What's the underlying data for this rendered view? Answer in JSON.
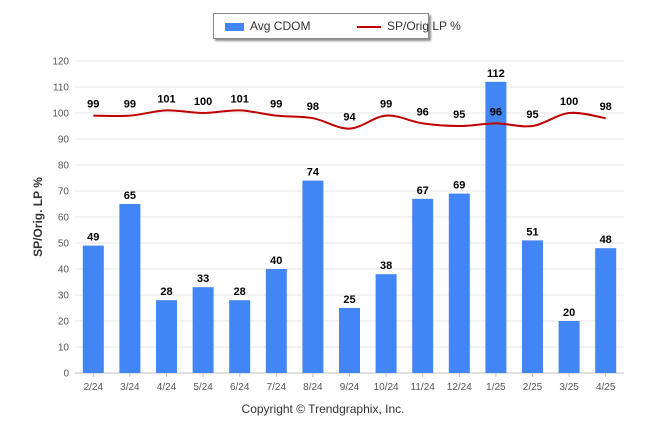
{
  "chart_data": {
    "type": "bar",
    "categories": [
      "2/24",
      "3/24",
      "4/24",
      "5/24",
      "6/24",
      "7/24",
      "8/24",
      "9/24",
      "10/24",
      "11/24",
      "12/24",
      "1/25",
      "2/25",
      "3/25",
      "4/25"
    ],
    "series": [
      {
        "name": "Avg CDOM",
        "type": "bar",
        "color": "#4285f4",
        "values": [
          49,
          65,
          28,
          33,
          28,
          40,
          74,
          25,
          38,
          67,
          69,
          112,
          51,
          20,
          48
        ]
      },
      {
        "name": "SP/Orig LP %",
        "type": "line",
        "color": "#c00000",
        "values": [
          99,
          99,
          101,
          100,
          101,
          99,
          98,
          94,
          99,
          96,
          95,
          96,
          95,
          100,
          98
        ]
      }
    ],
    "ylabel": "SP/Orig. LP %",
    "xlabel": "",
    "ylim": [
      0,
      120
    ],
    "yticks": [
      0,
      10,
      20,
      30,
      40,
      50,
      60,
      70,
      80,
      90,
      100,
      110,
      120
    ],
    "grid": true,
    "legend_position": "top-center"
  },
  "copyright": "Copyright © Trendgraphix, Inc."
}
